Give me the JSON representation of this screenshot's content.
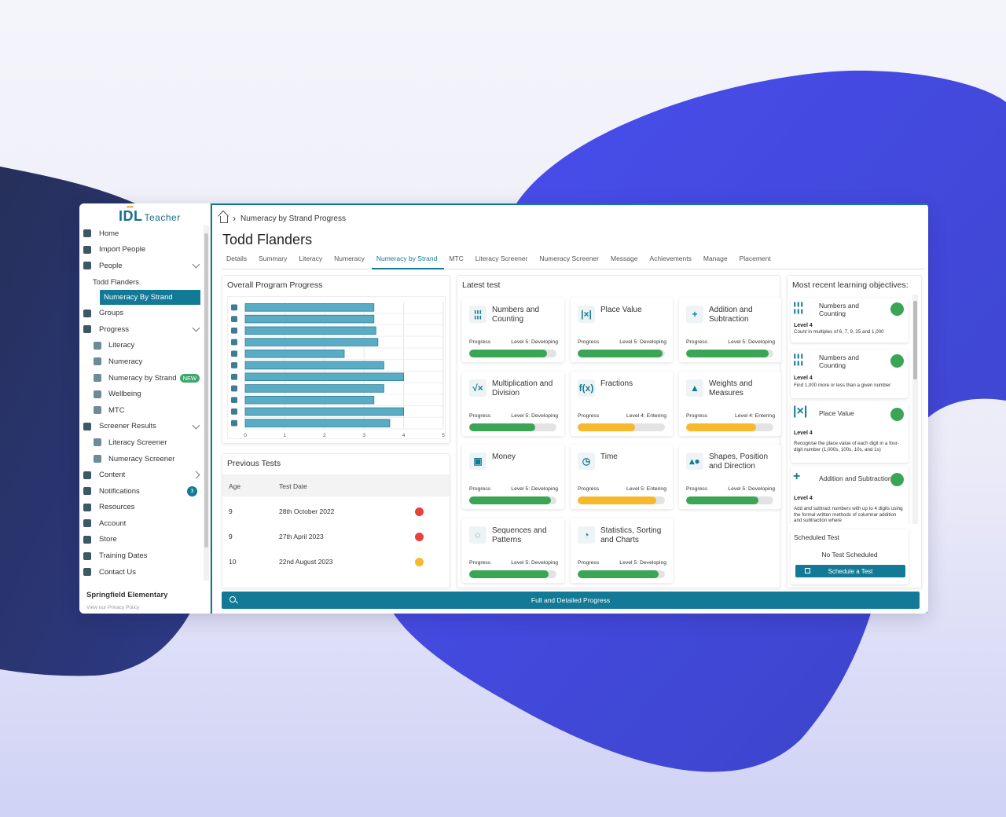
{
  "brand": {
    "name": "IDL",
    "product": "Teacher"
  },
  "colors": {
    "accent": "#127a96",
    "green": "#3aa655",
    "amber": "#f7b92b",
    "red": "#e8403a"
  },
  "sidebar": {
    "items": [
      {
        "label": "Home",
        "icon": "home-icon",
        "level": 0
      },
      {
        "label": "Import People",
        "icon": "cloud-upload-icon",
        "level": 0
      },
      {
        "label": "People",
        "icon": "person-icon",
        "level": 0,
        "chevron": "down"
      },
      {
        "label": "Todd Flanders",
        "icon": "",
        "level": 2
      },
      {
        "label": "Numeracy By Strand",
        "icon": "",
        "level": 1,
        "active": true
      },
      {
        "label": "Groups",
        "icon": "group-icon",
        "level": 0
      },
      {
        "label": "Progress",
        "icon": "chart-icon",
        "level": 0,
        "chevron": "down"
      },
      {
        "label": "Literacy",
        "icon": "book-icon",
        "level": 1
      },
      {
        "label": "Numeracy",
        "icon": "grid-icon",
        "level": 1
      },
      {
        "label": "Numeracy by Strand",
        "icon": "calculator-icon",
        "level": 1,
        "badge": "NEW"
      },
      {
        "label": "Wellbeing",
        "icon": "brain-icon",
        "level": 1
      },
      {
        "label": "MTC",
        "icon": "table-icon",
        "level": 1
      },
      {
        "label": "Screener Results",
        "icon": "boot-icon",
        "level": 0,
        "chevron": "down"
      },
      {
        "label": "Literacy Screener",
        "icon": "letter-a-icon",
        "level": 1
      },
      {
        "label": "Numeracy Screener",
        "icon": "number-one-icon",
        "level": 1
      },
      {
        "label": "Content",
        "icon": "books-icon",
        "level": 0,
        "chevron": "right"
      },
      {
        "label": "Notifications",
        "icon": "bell-icon",
        "level": 0,
        "count": "3"
      },
      {
        "label": "Resources",
        "icon": "resources-icon",
        "level": 0
      },
      {
        "label": "Account",
        "icon": "account-icon",
        "level": 0
      },
      {
        "label": "Store",
        "icon": "store-icon",
        "level": 0
      },
      {
        "label": "Training Dates",
        "icon": "calendar-icon",
        "level": 0
      },
      {
        "label": "Contact Us",
        "icon": "contact-icon",
        "level": 0
      }
    ],
    "school": "Springfield Elementary",
    "privacy": "View our Privacy Policy"
  },
  "breadcrumb": "Numeracy by Strand Progress",
  "student": "Todd Flanders",
  "tabs": [
    "Details",
    "Summary",
    "Literacy",
    "Numeracy",
    "Numeracy by Strand",
    "MTC",
    "Literacy Screener",
    "Numeracy Screener",
    "Message",
    "Achievements",
    "Manage",
    "Placement"
  ],
  "active_tab": 4,
  "overall": {
    "title": "Overall Program Progress"
  },
  "chart_data": {
    "type": "bar",
    "orientation": "horizontal",
    "categories": [
      "Numbers and Counting",
      "Place Value",
      "Addition and Subtraction",
      "Multiplication and Division",
      "Fractions",
      "Weights and Measures",
      "Money",
      "Time",
      "Shapes, Position and Direction",
      "Sequences and Patterns",
      "Statistics, Sorting and Charts"
    ],
    "category_icons": [
      "tally-icon",
      "place-value-icon",
      "plus-icon",
      "sqrt-icon",
      "function-icon",
      "weight-icon",
      "money-icon",
      "clock-icon",
      "shapes-icon",
      "sequence-icon",
      "pie-icon"
    ],
    "values": [
      3.25,
      3.25,
      3.3,
      3.35,
      2.5,
      3.5,
      4.0,
      3.5,
      3.25,
      4.0,
      3.65
    ],
    "xlim": [
      0,
      5
    ],
    "xticks": [
      "0",
      "1",
      "2",
      "3",
      "4",
      "5"
    ],
    "grid": true,
    "title": "",
    "xlabel": "",
    "ylabel": ""
  },
  "previous_tests": {
    "title": "Previous Tests",
    "columns": [
      "Age",
      "Test Date"
    ],
    "rows": [
      {
        "age": "9",
        "date": "28th October 2022",
        "status": "red"
      },
      {
        "age": "9",
        "date": "27th April 2023",
        "status": "red"
      },
      {
        "age": "10",
        "date": "22nd August 2023",
        "status": "amber"
      }
    ]
  },
  "latest": {
    "title": "Latest test",
    "progress_label": "Progress",
    "cards": [
      {
        "name": "Numbers and Counting",
        "icon": "tally-icon",
        "glyph": "¦¦¦",
        "level": "Level 5: Developing",
        "progress": 0.89,
        "color": "green"
      },
      {
        "name": "Place Value",
        "icon": "place-value-icon",
        "glyph": "|×|",
        "level": "Level 5: Developing",
        "progress": 0.97,
        "color": "green"
      },
      {
        "name": "Addition and Subtraction",
        "icon": "plus-icon",
        "glyph": "+",
        "level": "Level 5: Developing",
        "progress": 0.95,
        "color": "green"
      },
      {
        "name": "Multiplication and Division",
        "icon": "sqrt-icon",
        "glyph": "√×",
        "level": "Level 5: Developing",
        "progress": 0.76,
        "color": "green"
      },
      {
        "name": "Fractions",
        "icon": "function-icon",
        "glyph": "f(x)",
        "level": "Level 4: Entering",
        "progress": 0.66,
        "color": "amber"
      },
      {
        "name": "Weights and Measures",
        "icon": "weight-icon",
        "glyph": "▲",
        "level": "Level 4: Entering",
        "progress": 0.8,
        "color": "amber"
      },
      {
        "name": "Money",
        "icon": "money-icon",
        "glyph": "▣",
        "level": "Level 5: Developing",
        "progress": 0.94,
        "color": "green"
      },
      {
        "name": "Time",
        "icon": "clock-icon",
        "glyph": "◷",
        "level": "Level 5: Entering",
        "progress": 0.9,
        "color": "amber"
      },
      {
        "name": "Shapes, Position and Direction",
        "icon": "shapes-icon",
        "glyph": "▴●",
        "level": "Level 5: Developing",
        "progress": 0.83,
        "color": "green"
      },
      {
        "name": "Sequences and Patterns",
        "icon": "sequence-icon",
        "glyph": "◌",
        "level": "Level 5: Developing",
        "progress": 0.91,
        "color": "green"
      },
      {
        "name": "Statistics, Sorting and Charts",
        "icon": "pie-icon",
        "glyph": "◔",
        "level": "Level 5: Developing",
        "progress": 0.93,
        "color": "green"
      }
    ]
  },
  "objectives": {
    "title": "Most recent learning objectives:",
    "items": [
      {
        "name": "Numbers and Counting",
        "icon": "tally-icon",
        "glyph": "¦¦¦",
        "level": "Level 4",
        "desc": "Count in multiples of 6, 7, 9, 25 and 1,000"
      },
      {
        "name": "Numbers and Counting",
        "icon": "tally-icon",
        "glyph": "¦¦¦",
        "level": "Level 4",
        "desc": "Find 1,000 more or less than a given number"
      },
      {
        "name": "Place Value",
        "icon": "place-value-icon",
        "glyph": "|×|",
        "level": "Level 4",
        "desc": "Recognise the place value of each digit in a four-digit number (1,000s, 100s, 10s, and 1s)"
      },
      {
        "name": "Addition and Subtraction",
        "icon": "plus-icon",
        "glyph": "+",
        "level": "Level 4",
        "desc": "Add and subtract numbers with up to 4 digits using the formal written methods of columnar addition and subtraction where"
      }
    ]
  },
  "scheduled": {
    "title": "Scheduled Test",
    "status": "No Test Scheduled",
    "button": "Schedule a Test"
  },
  "bottom_button": "Full and Detailed Progress"
}
